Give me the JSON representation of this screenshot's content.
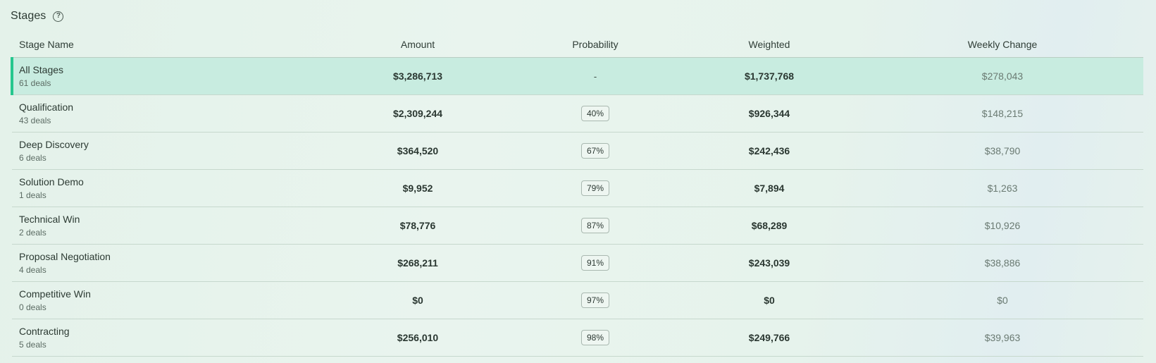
{
  "header": {
    "title": "Stages",
    "help_icon": "?"
  },
  "columns": [
    "Stage Name",
    "Amount",
    "Probability",
    "Weighted",
    "Weekly Change"
  ],
  "colors": {
    "accent": "#25c78e",
    "active_row": "#c8ece0"
  },
  "rows": [
    {
      "name": "All Stages",
      "deals": "61 deals",
      "amount": "$3,286,713",
      "probability": "-",
      "weighted": "$1,737,768",
      "weekly": "$278,043",
      "active": true
    },
    {
      "name": "Qualification",
      "deals": "43 deals",
      "amount": "$2,309,244",
      "probability": "40%",
      "weighted": "$926,344",
      "weekly": "$148,215"
    },
    {
      "name": "Deep Discovery",
      "deals": "6 deals",
      "amount": "$364,520",
      "probability": "67%",
      "weighted": "$242,436",
      "weekly": "$38,790"
    },
    {
      "name": "Solution Demo",
      "deals": "1 deals",
      "amount": "$9,952",
      "probability": "79%",
      "weighted": "$7,894",
      "weekly": "$1,263"
    },
    {
      "name": "Technical Win",
      "deals": "2 deals",
      "amount": "$78,776",
      "probability": "87%",
      "weighted": "$68,289",
      "weekly": "$10,926"
    },
    {
      "name": "Proposal Negotiation",
      "deals": "4 deals",
      "amount": "$268,211",
      "probability": "91%",
      "weighted": "$243,039",
      "weekly": "$38,886"
    },
    {
      "name": "Competitive Win",
      "deals": "0 deals",
      "amount": "$0",
      "probability": "97%",
      "weighted": "$0",
      "weekly": "$0"
    },
    {
      "name": "Contracting",
      "deals": "5 deals",
      "amount": "$256,010",
      "probability": "98%",
      "weighted": "$249,766",
      "weekly": "$39,963"
    }
  ]
}
